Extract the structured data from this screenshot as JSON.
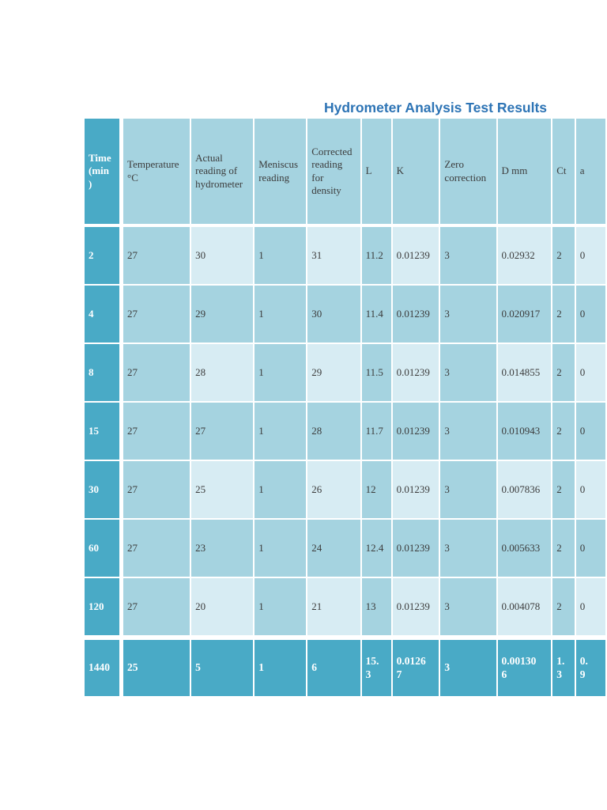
{
  "page": {
    "title": "Hydrometer Analysis Test Results"
  },
  "colors": {
    "accent_teal": "#49aac6",
    "band_medium": "#a5d3e0",
    "band_light": "#d7ecf3",
    "title_blue": "#2d74b5",
    "grid_white": "#ffffff",
    "text_dark": "#3c3c3c"
  },
  "table": {
    "columns": [
      "Time (min)",
      "Temperature °C",
      "Actual reading of hydrometer",
      "Meniscus reading",
      "Corrected reading for density",
      "L",
      "K",
      "Zero correction",
      "D mm",
      "Ct",
      "a"
    ],
    "rows": [
      {
        "time": "2",
        "values": [
          "27",
          "30",
          "1",
          "31",
          "11.2",
          "0.01239",
          "3",
          "0.02932",
          "2",
          "0"
        ]
      },
      {
        "time": "4",
        "values": [
          "27",
          "29",
          "1",
          "30",
          "11.4",
          "0.01239",
          "3",
          "0.020917",
          "2",
          "0"
        ]
      },
      {
        "time": "8",
        "values": [
          "27",
          "28",
          "1",
          "29",
          "11.5",
          "0.01239",
          "3",
          "0.014855",
          "2",
          "0"
        ]
      },
      {
        "time": "15",
        "values": [
          "27",
          "27",
          "1",
          "28",
          "11.7",
          "0.01239",
          "3",
          "0.010943",
          "2",
          "0"
        ]
      },
      {
        "time": "30",
        "values": [
          "27",
          "25",
          "1",
          "26",
          "12",
          "0.01239",
          "3",
          "0.007836",
          "2",
          "0"
        ]
      },
      {
        "time": "60",
        "values": [
          "27",
          "23",
          "1",
          "24",
          "12.4",
          "0.01239",
          "3",
          "0.005633",
          "2",
          "0"
        ]
      },
      {
        "time": "120",
        "values": [
          "27",
          "20",
          "1",
          "21",
          "13",
          "0.01239",
          "3",
          "0.004078",
          "2",
          "0"
        ]
      },
      {
        "time": "1440",
        "values": [
          "25",
          "5",
          "1",
          "6",
          "15.3",
          "0.01267",
          "3",
          "0.001306",
          "1.3",
          "0.9"
        ]
      }
    ]
  }
}
